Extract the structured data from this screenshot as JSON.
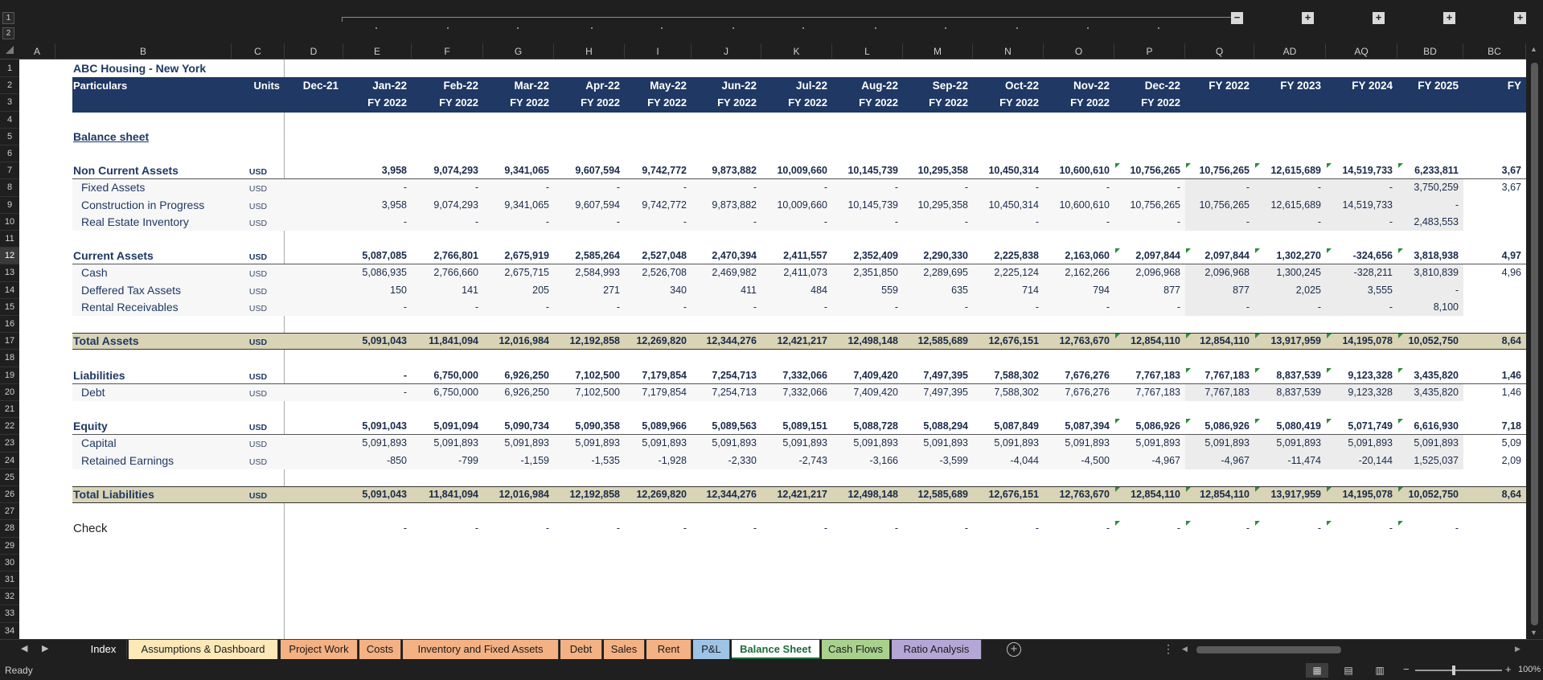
{
  "outline": {
    "levels": [
      "1",
      "2"
    ],
    "collapse_label": "−",
    "expand_label": "+"
  },
  "columns": [
    "A",
    "B",
    "C",
    "D",
    "E",
    "F",
    "G",
    "H",
    "I",
    "J",
    "K",
    "L",
    "M",
    "N",
    "O",
    "P",
    "Q",
    "AD",
    "AQ",
    "BD",
    "BC"
  ],
  "rows": [
    "1",
    "2",
    "3",
    "4",
    "5",
    "6",
    "7",
    "8",
    "9",
    "10",
    "11",
    "12",
    "13",
    "14",
    "15",
    "16",
    "17",
    "18",
    "19",
    "20",
    "21",
    "22",
    "23",
    "24",
    "25",
    "26",
    "27",
    "28",
    "29",
    "30",
    "31",
    "32",
    "33",
    "34"
  ],
  "active_row": "12",
  "sheet": {
    "company": "ABC Housing - New York",
    "particulars_label": "Particulars",
    "units_label": "Units",
    "section_title": "Balance sheet",
    "periods": [
      "Dec-21",
      "Jan-22",
      "Feb-22",
      "Mar-22",
      "Apr-22",
      "May-22",
      "Jun-22",
      "Jul-22",
      "Aug-22",
      "Sep-22",
      "Oct-22",
      "Nov-22",
      "Dec-22",
      "FY 2022",
      "FY 2023",
      "FY 2024",
      "FY 2025",
      "FY"
    ],
    "fiscal_years": [
      "",
      "FY 2022",
      "FY 2022",
      "FY 2022",
      "FY 2022",
      "FY 2022",
      "FY 2022",
      "FY 2022",
      "FY 2022",
      "FY 2022",
      "FY 2022",
      "FY 2022",
      "FY 2022",
      "",
      "",
      "",
      "",
      ""
    ],
    "lines": [
      {
        "row": 7,
        "label": "Non Current Assets",
        "unit": "USD",
        "style": "group",
        "values": [
          "",
          "3,958",
          "9,074,293",
          "9,341,065",
          "9,607,594",
          "9,742,772",
          "9,873,882",
          "10,009,660",
          "10,145,739",
          "10,295,358",
          "10,450,314",
          "10,600,610",
          "10,756,265",
          "10,756,265",
          "12,615,689",
          "14,519,733",
          "6,233,811",
          "3,67"
        ]
      },
      {
        "row": 8,
        "label": "Fixed Assets",
        "unit": "USD",
        "style": "item",
        "values": [
          "",
          "-",
          "-",
          "-",
          "-",
          "-",
          "-",
          "-",
          "-",
          "-",
          "-",
          "-",
          "-",
          "-",
          "-",
          "-",
          "3,750,259",
          "3,67"
        ]
      },
      {
        "row": 9,
        "label": "Construction in Progress",
        "unit": "USD",
        "style": "item",
        "values": [
          "",
          "3,958",
          "9,074,293",
          "9,341,065",
          "9,607,594",
          "9,742,772",
          "9,873,882",
          "10,009,660",
          "10,145,739",
          "10,295,358",
          "10,450,314",
          "10,600,610",
          "10,756,265",
          "10,756,265",
          "12,615,689",
          "14,519,733",
          "-",
          ""
        ]
      },
      {
        "row": 10,
        "label": "Real Estate Inventory",
        "unit": "USD",
        "style": "item",
        "values": [
          "",
          "-",
          "-",
          "-",
          "-",
          "-",
          "-",
          "-",
          "-",
          "-",
          "-",
          "-",
          "-",
          "-",
          "-",
          "-",
          "2,483,553",
          ""
        ]
      },
      {
        "row": 12,
        "label": "Current Assets",
        "unit": "USD",
        "style": "group",
        "values": [
          "",
          "5,087,085",
          "2,766,801",
          "2,675,919",
          "2,585,264",
          "2,527,048",
          "2,470,394",
          "2,411,557",
          "2,352,409",
          "2,290,330",
          "2,225,838",
          "2,163,060",
          "2,097,844",
          "2,097,844",
          "1,302,270",
          "-324,656",
          "3,818,938",
          "4,97"
        ]
      },
      {
        "row": 13,
        "label": "Cash",
        "unit": "USD",
        "style": "item",
        "values": [
          "",
          "5,086,935",
          "2,766,660",
          "2,675,715",
          "2,584,993",
          "2,526,708",
          "2,469,982",
          "2,411,073",
          "2,351,850",
          "2,289,695",
          "2,225,124",
          "2,162,266",
          "2,096,968",
          "2,096,968",
          "1,300,245",
          "-328,211",
          "3,810,839",
          "4,96"
        ]
      },
      {
        "row": 14,
        "label": "Deffered Tax Assets",
        "unit": "USD",
        "style": "item",
        "values": [
          "",
          "150",
          "141",
          "205",
          "271",
          "340",
          "411",
          "484",
          "559",
          "635",
          "714",
          "794",
          "877",
          "877",
          "2,025",
          "3,555",
          "-",
          ""
        ]
      },
      {
        "row": 15,
        "label": "Rental Receivables",
        "unit": "USD",
        "style": "item",
        "values": [
          "",
          "-",
          "-",
          "-",
          "-",
          "-",
          "-",
          "-",
          "-",
          "-",
          "-",
          "-",
          "-",
          "-",
          "-",
          "-",
          "8,100",
          ""
        ]
      },
      {
        "row": 17,
        "label": "Total Assets",
        "unit": "USD",
        "style": "total",
        "values": [
          "",
          "5,091,043",
          "11,841,094",
          "12,016,984",
          "12,192,858",
          "12,269,820",
          "12,344,276",
          "12,421,217",
          "12,498,148",
          "12,585,689",
          "12,676,151",
          "12,763,670",
          "12,854,110",
          "12,854,110",
          "13,917,959",
          "14,195,078",
          "10,052,750",
          "8,64"
        ]
      },
      {
        "row": 19,
        "label": "Liabilities",
        "unit": "USD",
        "style": "group",
        "values": [
          "",
          "-",
          "6,750,000",
          "6,926,250",
          "7,102,500",
          "7,179,854",
          "7,254,713",
          "7,332,066",
          "7,409,420",
          "7,497,395",
          "7,588,302",
          "7,676,276",
          "7,767,183",
          "7,767,183",
          "8,837,539",
          "9,123,328",
          "3,435,820",
          "1,46"
        ]
      },
      {
        "row": 20,
        "label": "Debt",
        "unit": "USD",
        "style": "item",
        "values": [
          "",
          "-",
          "6,750,000",
          "6,926,250",
          "7,102,500",
          "7,179,854",
          "7,254,713",
          "7,332,066",
          "7,409,420",
          "7,497,395",
          "7,588,302",
          "7,676,276",
          "7,767,183",
          "7,767,183",
          "8,837,539",
          "9,123,328",
          "3,435,820",
          "1,46"
        ]
      },
      {
        "row": 22,
        "label": "Equity",
        "unit": "USD",
        "style": "group",
        "values": [
          "",
          "5,091,043",
          "5,091,094",
          "5,090,734",
          "5,090,358",
          "5,089,966",
          "5,089,563",
          "5,089,151",
          "5,088,728",
          "5,088,294",
          "5,087,849",
          "5,087,394",
          "5,086,926",
          "5,086,926",
          "5,080,419",
          "5,071,749",
          "6,616,930",
          "7,18"
        ]
      },
      {
        "row": 23,
        "label": "Capital",
        "unit": "USD",
        "style": "item",
        "values": [
          "",
          "5,091,893",
          "5,091,893",
          "5,091,893",
          "5,091,893",
          "5,091,893",
          "5,091,893",
          "5,091,893",
          "5,091,893",
          "5,091,893",
          "5,091,893",
          "5,091,893",
          "5,091,893",
          "5,091,893",
          "5,091,893",
          "5,091,893",
          "5,091,893",
          "5,09"
        ]
      },
      {
        "row": 24,
        "label": "Retained Earnings",
        "unit": "USD",
        "style": "item",
        "values": [
          "",
          "-850",
          "-799",
          "-1,159",
          "-1,535",
          "-1,928",
          "-2,330",
          "-2,743",
          "-3,166",
          "-3,599",
          "-4,044",
          "-4,500",
          "-4,967",
          "-4,967",
          "-11,474",
          "-20,144",
          "1,525,037",
          "2,09"
        ]
      },
      {
        "row": 26,
        "label": "Total Liabilities",
        "unit": "USD",
        "style": "total",
        "values": [
          "",
          "5,091,043",
          "11,841,094",
          "12,016,984",
          "12,192,858",
          "12,269,820",
          "12,344,276",
          "12,421,217",
          "12,498,148",
          "12,585,689",
          "12,676,151",
          "12,763,670",
          "12,854,110",
          "12,854,110",
          "13,917,959",
          "14,195,078",
          "10,052,750",
          "8,64"
        ]
      },
      {
        "row": 28,
        "label": "Check",
        "unit": "",
        "style": "check",
        "values": [
          "",
          "-",
          "-",
          "-",
          "-",
          "-",
          "-",
          "-",
          "-",
          "-",
          "-",
          "-",
          "-",
          "-",
          "-",
          "-",
          "-",
          ""
        ]
      }
    ]
  },
  "tabs": [
    {
      "label": "Index",
      "color": "#ffffff"
    },
    {
      "label": "Assumptions & Dashboard",
      "color": "#fde9b8"
    },
    {
      "label": "Project Work",
      "color": "#f4b183"
    },
    {
      "label": "Costs",
      "color": "#f4b183"
    },
    {
      "label": "Inventory and Fixed Assets",
      "color": "#f4b183"
    },
    {
      "label": "Debt",
      "color": "#f4b183"
    },
    {
      "label": "Sales",
      "color": "#f4b183"
    },
    {
      "label": "Rent",
      "color": "#f4b183"
    },
    {
      "label": "P&L",
      "color": "#9dc3e6"
    },
    {
      "label": "Balance Sheet",
      "color": "#ffffff"
    },
    {
      "label": "Cash Flows",
      "color": "#a9d18e"
    },
    {
      "label": "Ratio Analysis",
      "color": "#b4a7d6"
    }
  ],
  "active_tab": "Balance Sheet",
  "status": {
    "ready": "Ready",
    "zoom": "100%"
  },
  "colors": {
    "header_navy": "#1f3864",
    "total_band": "#d9d4b5",
    "shade_gray": "#ececec",
    "flag_green": "#2e8b3c"
  }
}
